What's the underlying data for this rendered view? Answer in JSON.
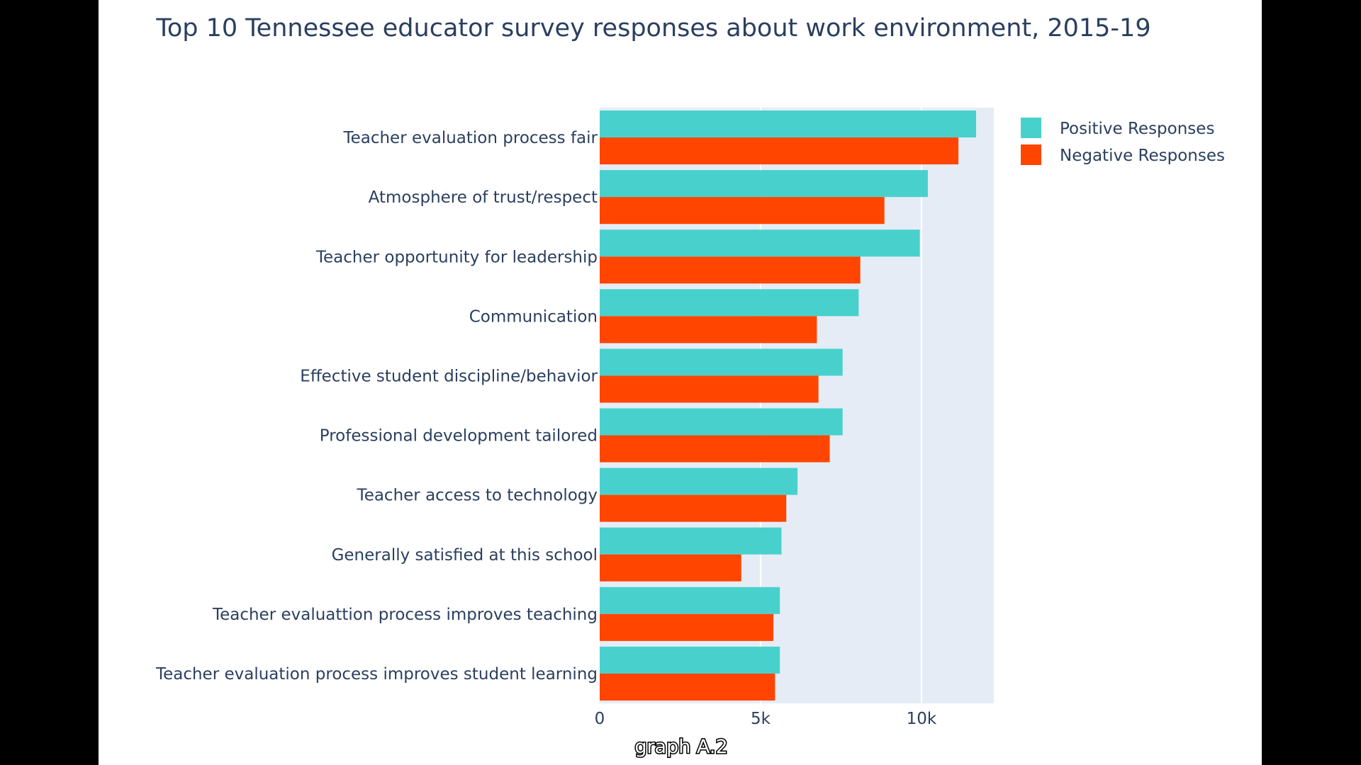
{
  "chart_data": {
    "type": "bar",
    "orientation": "horizontal",
    "title": "Top 10 Tennessee educator survey responses about work environment, 2015-19",
    "categories": [
      "Teacher evaluation process fair",
      "Atmosphere of trust/respect",
      "Teacher opportunity for leadership",
      "Communication",
      "Effective student discipline/behavior",
      "Professional development tailored",
      "Teacher access to technology",
      "Generally satisfied at this school",
      "Teacher evaluattion process improves teaching",
      "Teacher evaluation process improves student learning"
    ],
    "series": [
      {
        "name": "Positive Responses",
        "color": "#48d1cc",
        "values": [
          11700,
          10200,
          9950,
          8050,
          7550,
          7550,
          6150,
          5650,
          5600,
          5600
        ]
      },
      {
        "name": "Negative Responses",
        "color": "#ff4500",
        "values": [
          11150,
          8850,
          8100,
          6750,
          6800,
          7150,
          5800,
          4400,
          5400,
          5450
        ]
      }
    ],
    "xaxis": {
      "range": [
        0,
        12250
      ],
      "tickvals": [
        0,
        5000,
        10000
      ],
      "ticktext": [
        "0",
        "5k",
        "10k"
      ]
    },
    "grid": true,
    "legend_position": "top-right",
    "plot_background": "#e5ecf6"
  },
  "caption": "graph A.2"
}
